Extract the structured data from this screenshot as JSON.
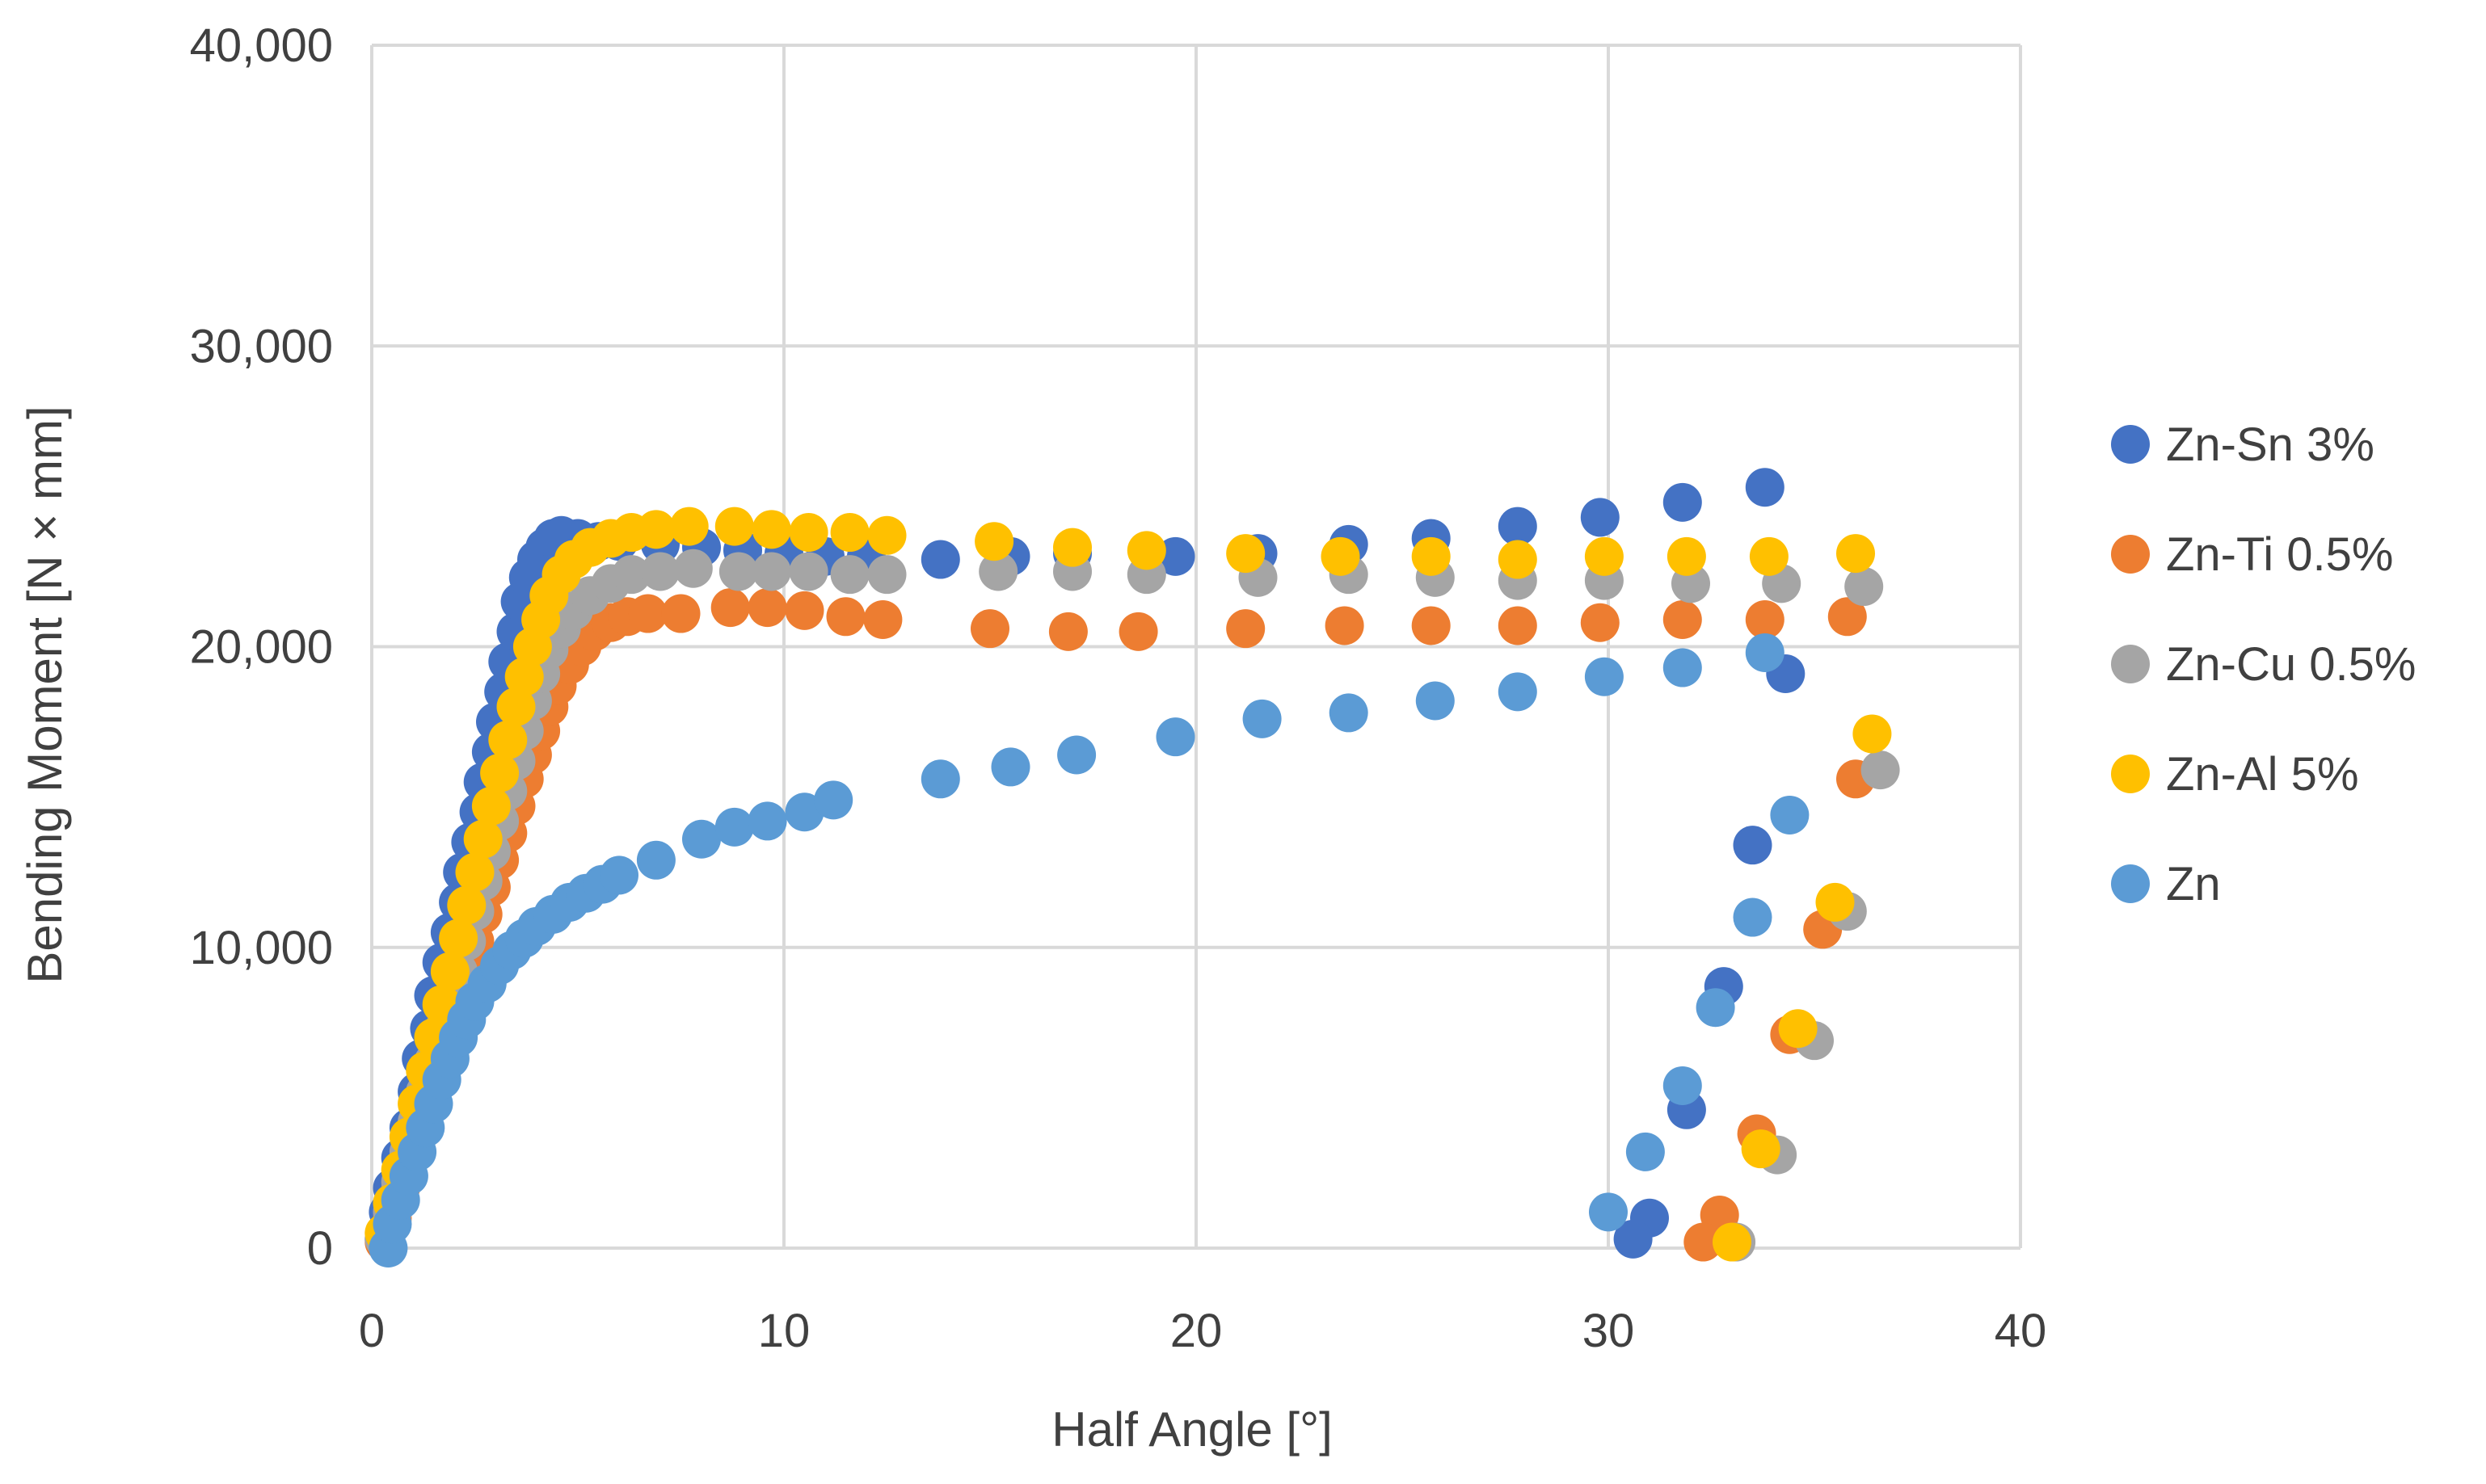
{
  "chart_data": {
    "type": "scatter",
    "title": "",
    "xlabel": "Half Angle [°]",
    "ylabel": "Bending Moment [N × mm]",
    "xlim": [
      0,
      40
    ],
    "ylim": [
      0,
      40000
    ],
    "x_ticks": [
      0,
      10,
      20,
      30,
      40
    ],
    "y_ticks": [
      0,
      10000,
      20000,
      30000,
      40000
    ],
    "x_tick_labels": [
      "0",
      "10",
      "20",
      "30",
      "40"
    ],
    "y_tick_labels": [
      "0",
      "10,000",
      "20,000",
      "30,000",
      "40,000"
    ],
    "grid": true,
    "legend_position": "right",
    "series": [
      {
        "name": "Zn-Sn 3%",
        "color": "#4472C4",
        "points": [
          [
            0.3,
            300
          ],
          [
            0.4,
            1200
          ],
          [
            0.5,
            2000
          ],
          [
            0.7,
            3000
          ],
          [
            0.9,
            4000
          ],
          [
            1.1,
            5200
          ],
          [
            1.2,
            6300
          ],
          [
            1.4,
            7300
          ],
          [
            1.5,
            8400
          ],
          [
            1.7,
            9500
          ],
          [
            1.9,
            10500
          ],
          [
            2.1,
            11500
          ],
          [
            2.2,
            12500
          ],
          [
            2.4,
            13500
          ],
          [
            2.6,
            14500
          ],
          [
            2.7,
            15500
          ],
          [
            2.9,
            16500
          ],
          [
            3.0,
            17500
          ],
          [
            3.2,
            18500
          ],
          [
            3.3,
            19500
          ],
          [
            3.5,
            20500
          ],
          [
            3.6,
            21500
          ],
          [
            3.8,
            22300
          ],
          [
            4.0,
            22900
          ],
          [
            4.2,
            23300
          ],
          [
            4.4,
            23600
          ],
          [
            4.6,
            23700
          ],
          [
            5.0,
            23600
          ],
          [
            5.5,
            23500
          ],
          [
            6.0,
            23500
          ],
          [
            7.0,
            23400
          ],
          [
            8.0,
            23300
          ],
          [
            9.0,
            23200
          ],
          [
            10.0,
            23100
          ],
          [
            11.0,
            23000
          ],
          [
            12.0,
            23000
          ],
          [
            13.8,
            22900
          ],
          [
            15.5,
            23000
          ],
          [
            17.0,
            23100
          ],
          [
            19.5,
            23000
          ],
          [
            21.5,
            23100
          ],
          [
            23.7,
            23400
          ],
          [
            25.7,
            23600
          ],
          [
            27.8,
            24000
          ],
          [
            29.8,
            24300
          ],
          [
            31.8,
            24800
          ],
          [
            33.8,
            25300
          ],
          [
            34.3,
            19100
          ],
          [
            33.5,
            13400
          ],
          [
            32.8,
            8700
          ],
          [
            31.9,
            4600
          ],
          [
            31.0,
            1000
          ],
          [
            30.6,
            300
          ]
        ]
      },
      {
        "name": "Zn-Ti 0.5%",
        "color": "#ED7D31",
        "points": [
          [
            0.3,
            200
          ],
          [
            0.5,
            1000
          ],
          [
            0.7,
            2000
          ],
          [
            0.9,
            3000
          ],
          [
            1.1,
            3900
          ],
          [
            1.3,
            4800
          ],
          [
            1.5,
            5700
          ],
          [
            1.7,
            6600
          ],
          [
            1.9,
            7500
          ],
          [
            2.1,
            8400
          ],
          [
            2.3,
            9300
          ],
          [
            2.5,
            10200
          ],
          [
            2.7,
            11100
          ],
          [
            2.9,
            12000
          ],
          [
            3.1,
            12900
          ],
          [
            3.3,
            13800
          ],
          [
            3.5,
            14700
          ],
          [
            3.7,
            15600
          ],
          [
            3.9,
            16400
          ],
          [
            4.1,
            17200
          ],
          [
            4.3,
            18000
          ],
          [
            4.5,
            18700
          ],
          [
            4.8,
            19400
          ],
          [
            5.1,
            20000
          ],
          [
            5.4,
            20500
          ],
          [
            5.8,
            20800
          ],
          [
            6.2,
            21000
          ],
          [
            6.7,
            21100
          ],
          [
            7.5,
            21100
          ],
          [
            8.7,
            21300
          ],
          [
            9.6,
            21300
          ],
          [
            10.5,
            21200
          ],
          [
            11.5,
            21000
          ],
          [
            12.4,
            20900
          ],
          [
            15.0,
            20600
          ],
          [
            16.9,
            20500
          ],
          [
            18.6,
            20500
          ],
          [
            21.2,
            20600
          ],
          [
            23.6,
            20700
          ],
          [
            25.7,
            20700
          ],
          [
            27.8,
            20700
          ],
          [
            29.8,
            20800
          ],
          [
            31.8,
            20900
          ],
          [
            33.8,
            20900
          ],
          [
            35.8,
            21000
          ],
          [
            36.0,
            15600
          ],
          [
            35.2,
            10600
          ],
          [
            34.4,
            7100
          ],
          [
            33.6,
            3800
          ],
          [
            32.7,
            1100
          ],
          [
            32.3,
            200
          ]
        ]
      },
      {
        "name": "Zn-Cu 0.5%",
        "color": "#A5A5A5",
        "points": [
          [
            0.3,
            300
          ],
          [
            0.5,
            1200
          ],
          [
            0.7,
            2200
          ],
          [
            0.9,
            3200
          ],
          [
            1.1,
            4200
          ],
          [
            1.3,
            5200
          ],
          [
            1.5,
            6200
          ],
          [
            1.7,
            7200
          ],
          [
            1.9,
            8200
          ],
          [
            2.1,
            9200
          ],
          [
            2.3,
            10200
          ],
          [
            2.5,
            11200
          ],
          [
            2.7,
            12200
          ],
          [
            2.9,
            13200
          ],
          [
            3.1,
            14200
          ],
          [
            3.3,
            15200
          ],
          [
            3.5,
            16200
          ],
          [
            3.7,
            17200
          ],
          [
            3.9,
            18200
          ],
          [
            4.1,
            19100
          ],
          [
            4.3,
            19900
          ],
          [
            4.6,
            20600
          ],
          [
            4.9,
            21200
          ],
          [
            5.3,
            21700
          ],
          [
            5.8,
            22100
          ],
          [
            6.3,
            22400
          ],
          [
            7.0,
            22500
          ],
          [
            7.8,
            22600
          ],
          [
            8.9,
            22500
          ],
          [
            9.7,
            22500
          ],
          [
            10.6,
            22500
          ],
          [
            11.6,
            22400
          ],
          [
            12.5,
            22400
          ],
          [
            15.2,
            22500
          ],
          [
            17.0,
            22500
          ],
          [
            18.8,
            22400
          ],
          [
            21.5,
            22300
          ],
          [
            23.7,
            22400
          ],
          [
            25.8,
            22300
          ],
          [
            27.8,
            22200
          ],
          [
            29.9,
            22200
          ],
          [
            32.0,
            22100
          ],
          [
            34.2,
            22100
          ],
          [
            36.2,
            22000
          ],
          [
            36.6,
            15900
          ],
          [
            35.8,
            11200
          ],
          [
            35.0,
            6900
          ],
          [
            34.1,
            3100
          ],
          [
            33.1,
            200
          ]
        ]
      },
      {
        "name": "Zn-Al 5%",
        "color": "#FFC000",
        "points": [
          [
            0.3,
            500
          ],
          [
            0.5,
            1500
          ],
          [
            0.7,
            2600
          ],
          [
            0.9,
            3700
          ],
          [
            1.1,
            4800
          ],
          [
            1.3,
            5900
          ],
          [
            1.5,
            7000
          ],
          [
            1.7,
            8100
          ],
          [
            1.9,
            9200
          ],
          [
            2.1,
            10300
          ],
          [
            2.3,
            11400
          ],
          [
            2.5,
            12500
          ],
          [
            2.7,
            13600
          ],
          [
            2.9,
            14700
          ],
          [
            3.1,
            15800
          ],
          [
            3.3,
            16900
          ],
          [
            3.5,
            18000
          ],
          [
            3.7,
            19000
          ],
          [
            3.9,
            20000
          ],
          [
            4.1,
            20900
          ],
          [
            4.3,
            21700
          ],
          [
            4.6,
            22400
          ],
          [
            4.9,
            22900
          ],
          [
            5.3,
            23300
          ],
          [
            5.8,
            23600
          ],
          [
            6.3,
            23800
          ],
          [
            6.9,
            23900
          ],
          [
            7.7,
            24000
          ],
          [
            8.8,
            24000
          ],
          [
            9.7,
            23900
          ],
          [
            10.6,
            23800
          ],
          [
            11.6,
            23800
          ],
          [
            12.5,
            23700
          ],
          [
            15.1,
            23500
          ],
          [
            17.0,
            23300
          ],
          [
            18.8,
            23200
          ],
          [
            21.2,
            23100
          ],
          [
            23.5,
            23000
          ],
          [
            25.7,
            23000
          ],
          [
            27.8,
            22900
          ],
          [
            29.9,
            23000
          ],
          [
            31.9,
            23000
          ],
          [
            33.9,
            23000
          ],
          [
            36.0,
            23100
          ],
          [
            36.4,
            17100
          ],
          [
            35.5,
            11500
          ],
          [
            34.6,
            7300
          ],
          [
            33.7,
            3300
          ],
          [
            33.0,
            200
          ]
        ]
      },
      {
        "name": "Zn",
        "color": "#5B9BD5",
        "points": [
          [
            0.4,
            0
          ],
          [
            0.5,
            800
          ],
          [
            0.7,
            1600
          ],
          [
            0.9,
            2400
          ],
          [
            1.1,
            3200
          ],
          [
            1.3,
            4000
          ],
          [
            1.5,
            4800
          ],
          [
            1.7,
            5600
          ],
          [
            1.9,
            6300
          ],
          [
            2.1,
            7000
          ],
          [
            2.3,
            7600
          ],
          [
            2.5,
            8200
          ],
          [
            2.8,
            8800
          ],
          [
            3.1,
            9400
          ],
          [
            3.4,
            9900
          ],
          [
            3.7,
            10300
          ],
          [
            4.0,
            10700
          ],
          [
            4.4,
            11100
          ],
          [
            4.8,
            11500
          ],
          [
            5.2,
            11800
          ],
          [
            5.6,
            12100
          ],
          [
            6.0,
            12400
          ],
          [
            6.9,
            12900
          ],
          [
            8.0,
            13600
          ],
          [
            8.8,
            14000
          ],
          [
            9.6,
            14200
          ],
          [
            10.5,
            14500
          ],
          [
            11.2,
            14900
          ],
          [
            13.8,
            15600
          ],
          [
            15.5,
            16000
          ],
          [
            17.1,
            16400
          ],
          [
            19.5,
            17000
          ],
          [
            21.6,
            17600
          ],
          [
            23.7,
            17800
          ],
          [
            25.8,
            18200
          ],
          [
            27.8,
            18500
          ],
          [
            29.9,
            19000
          ],
          [
            31.8,
            19300
          ],
          [
            33.8,
            19800
          ],
          [
            34.4,
            14400
          ],
          [
            33.5,
            11000
          ],
          [
            32.6,
            8000
          ],
          [
            31.8,
            5400
          ],
          [
            30.9,
            3200
          ],
          [
            30.0,
            1200
          ]
        ]
      }
    ]
  }
}
